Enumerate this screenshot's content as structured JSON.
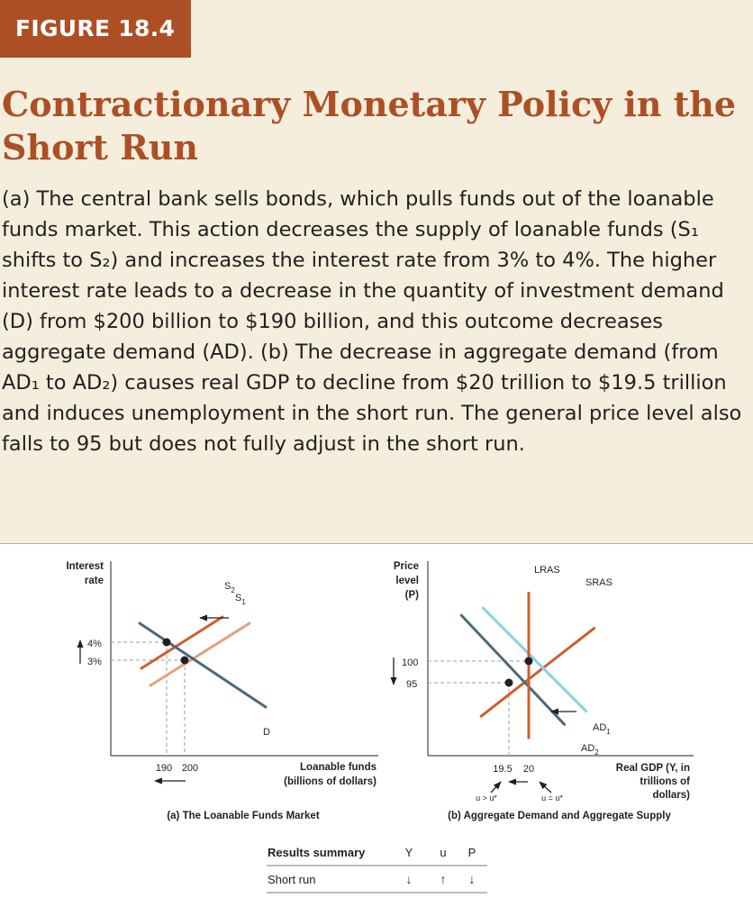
{
  "figure_label": "FIGURE 18.4",
  "title": "Contractionary Monetary Policy in the Short Run",
  "caption": "(a) The central bank sells bonds, which pulls funds out of the loanable funds market. This action decreases the supply of loanable funds (S₁ shifts to S₂) and increases the interest rate from 3% to 4%. The higher interest rate leads to a decrease in the quantity of investment demand (D) from $200 billion to $190 billion, and this outcome decreases aggregate demand (AD). (b) The decrease in aggregate demand (from AD₁ to AD₂) causes real GDP to decline from $20 trillion to $19.5 trillion and induces unemployment in the short run. The general price level also falls to 95 but does not fully adjust in the short run.",
  "colors": {
    "tag_bg": "#ad4f25",
    "title": "#ad4f25",
    "demand": "#4a6a7d",
    "supply_new": "#cd5f2d",
    "supply_old": "#e8a07a",
    "ad_new": "#4a6a7d",
    "ad_old": "#8ccfe2",
    "lras": "#cd5f2d",
    "sras": "#cd5f2d",
    "background": "#f5eedd",
    "panel": "#ffffff"
  },
  "chart_data": [
    {
      "type": "line",
      "panel_title": "(a) The Loanable Funds Market",
      "ylabel": [
        "Interest",
        "rate"
      ],
      "xlabel": [
        "Loanable funds",
        "(billions of dollars)"
      ],
      "x_ticks": [
        "190",
        "200"
      ],
      "y_ticks": [
        "4%",
        "3%"
      ],
      "series": [
        {
          "name": "S",
          "sub": "2",
          "color": "#cd5f2d",
          "points": [
            [
              176,
              2.55
            ],
            [
              221,
              5.4
            ]
          ]
        },
        {
          "name": "S",
          "sub": "1",
          "color": "#e8a07a",
          "points": [
            [
              181,
              1.6
            ],
            [
              236,
              5.05
            ]
          ]
        },
        {
          "name": "D",
          "sub": "",
          "color": "#4a6a7d",
          "points": [
            [
              175,
              5.05
            ],
            [
              245,
              0.4
            ]
          ]
        }
      ],
      "equilibria": [
        {
          "label": "new",
          "x": 190,
          "y": 4
        },
        {
          "label": "old",
          "x": 200,
          "y": 3
        }
      ]
    },
    {
      "type": "line",
      "panel_title": "(b) Aggregate Demand and Aggregate Supply",
      "ylabel": [
        "Price",
        "level",
        "(P)"
      ],
      "xlabel": [
        "Real GDP (Y, in",
        "trillions of",
        "dollars)"
      ],
      "x_ticks": [
        "19.5",
        "20"
      ],
      "y_ticks": [
        "100",
        "95"
      ],
      "x_tick_notes": [
        "u > u*",
        "u = u*"
      ],
      "series": [
        {
          "name": "LRAS",
          "sub": "",
          "color": "#cd5f2d",
          "points": [
            [
              20,
              82
            ],
            [
              20,
              116
            ]
          ]
        },
        {
          "name": "SRAS",
          "sub": "",
          "color": "#cd5f2d",
          "points": [
            [
              18.8,
              87.25
            ],
            [
              21.65,
              107.6
            ]
          ]
        },
        {
          "name": "AD",
          "sub": "1",
          "color": "#8ccfe2",
          "points": [
            [
              18.85,
              112.25
            ],
            [
              21.45,
              88.4
            ]
          ]
        },
        {
          "name": "AD",
          "sub": "2",
          "color": "#4a6a7d",
          "points": [
            [
              18.3,
              110.6
            ],
            [
              20.9,
              85.35
            ]
          ]
        }
      ],
      "equilibria": [
        {
          "label": "initial",
          "x": 20,
          "y": 100
        },
        {
          "label": "short run",
          "x": 19.5,
          "y": 95
        }
      ]
    }
  ],
  "results_summary": {
    "header": "Results summary",
    "columns": [
      "Y",
      "u",
      "P"
    ],
    "row_label": "Short run",
    "row_values": [
      "↓",
      "↑",
      "↓"
    ]
  }
}
